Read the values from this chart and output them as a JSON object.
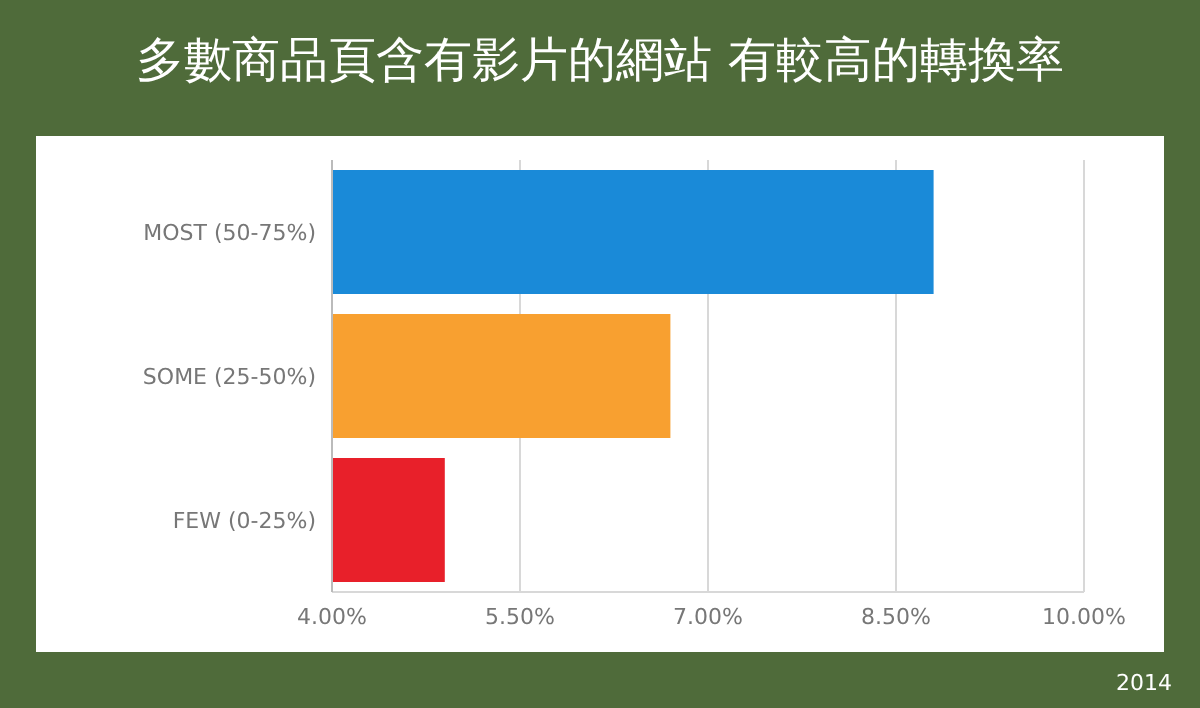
{
  "chart_data": {
    "type": "bar",
    "orientation": "horizontal",
    "title": "多數商品頁含有影片的網站 有較高的轉換率",
    "categories": [
      "MOST (50-75%)",
      "SOME (25-50%)",
      "FEW (0-25%)"
    ],
    "values": [
      8.8,
      6.7,
      4.9
    ],
    "colors": [
      "#1a8ad8",
      "#f8a030",
      "#e8202a"
    ],
    "xlim": [
      4,
      10
    ],
    "xticks": [
      {
        "value": 4,
        "label": "4.00%"
      },
      {
        "value": 5.5,
        "label": "5.50%"
      },
      {
        "value": 7,
        "label": "7.00%"
      },
      {
        "value": 8.5,
        "label": "8.50%"
      },
      {
        "value": 10,
        "label": "10.00%"
      }
    ],
    "grid": "x",
    "annotations": [
      "2014"
    ]
  }
}
